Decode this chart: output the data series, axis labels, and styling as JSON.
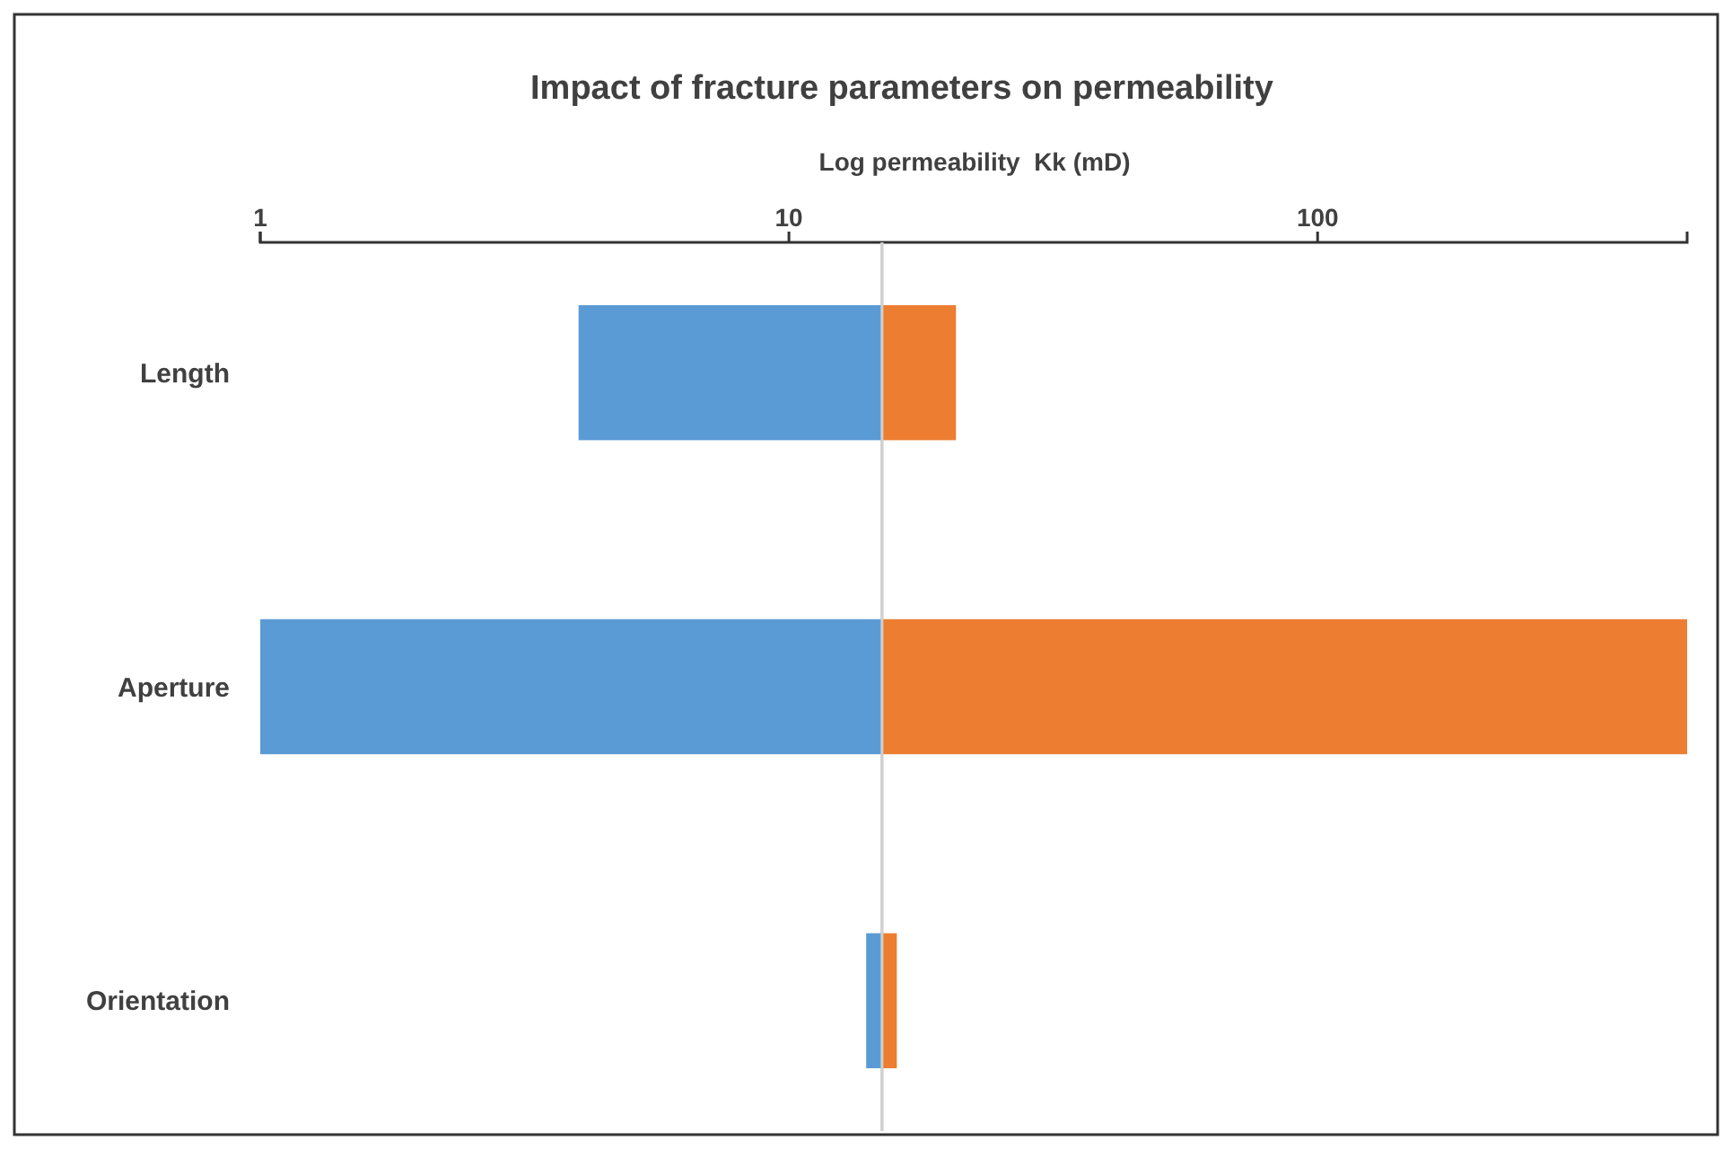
{
  "chart_data": {
    "type": "bar",
    "title": "Impact of fracture parameters on permeability",
    "xlabel": "Log permeability  Kk (mD)",
    "orientation": "horizontal",
    "log": "x",
    "categories": [
      "Length",
      "Aperture",
      "Orientation"
    ],
    "series": [
      {
        "color": "#5b9bd5",
        "base": [
          4,
          1,
          14
        ],
        "values": [
          11,
          14,
          1
        ]
      },
      {
        "color": "#ed7d31",
        "base": [
          15,
          15,
          15
        ],
        "values": [
          5.7,
          485,
          1
        ]
      }
    ],
    "xlim": [
      1,
      500
    ],
    "xticks": [
      1,
      10,
      100
    ],
    "ref_lines": [
      {
        "axis": "x",
        "value": 15,
        "color": "#d0d0d0"
      }
    ],
    "grid": false
  }
}
